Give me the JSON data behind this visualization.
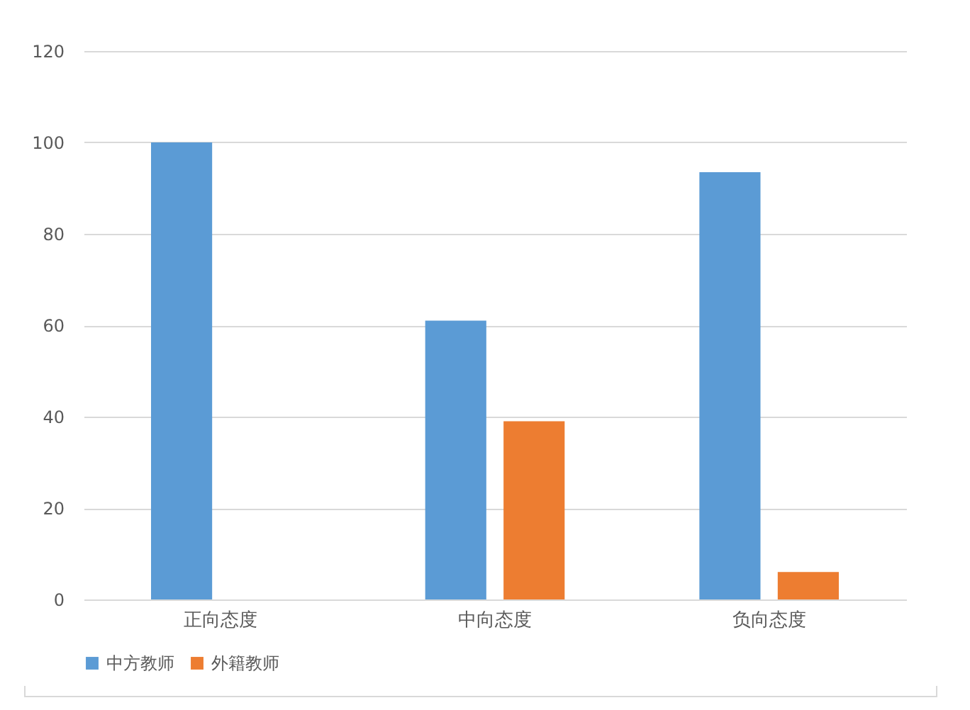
{
  "chart_data": {
    "type": "bar",
    "categories": [
      "正向态度",
      "中向态度",
      "负向态度"
    ],
    "series": [
      {
        "name": "中方教师",
        "color": "#5b9bd5",
        "values": [
          100,
          61,
          93.5
        ]
      },
      {
        "name": "外籍教师",
        "color": "#ed7d31",
        "values": [
          0,
          39,
          6
        ]
      }
    ],
    "ylim": [
      0,
      120
    ],
    "yticks": [
      0,
      20,
      40,
      60,
      80,
      100,
      120
    ],
    "grid": "y",
    "legend": "bottom"
  }
}
